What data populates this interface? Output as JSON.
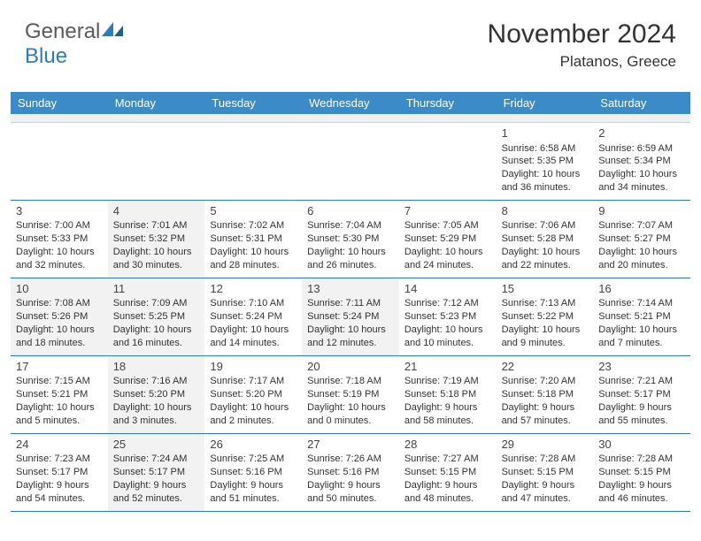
{
  "brand": {
    "part1": "General",
    "part2": "Blue"
  },
  "title": "November 2024",
  "location": "Platanos, Greece",
  "headerColor": "#3b8bc9",
  "borderColor": "#2b7bbf",
  "dayNames": [
    "Sunday",
    "Monday",
    "Tuesday",
    "Wednesday",
    "Thursday",
    "Friday",
    "Saturday"
  ],
  "weeks": [
    [
      {
        "blank": true
      },
      {
        "blank": true
      },
      {
        "blank": true
      },
      {
        "blank": true
      },
      {
        "blank": true
      },
      {
        "day": "1",
        "sunrise": "Sunrise: 6:58 AM",
        "sunset": "Sunset: 5:35 PM",
        "daylight": "Daylight: 10 hours and 36 minutes."
      },
      {
        "day": "2",
        "sunrise": "Sunrise: 6:59 AM",
        "sunset": "Sunset: 5:34 PM",
        "daylight": "Daylight: 10 hours and 34 minutes."
      }
    ],
    [
      {
        "day": "3",
        "sunrise": "Sunrise: 7:00 AM",
        "sunset": "Sunset: 5:33 PM",
        "daylight": "Daylight: 10 hours and 32 minutes."
      },
      {
        "day": "4",
        "sunrise": "Sunrise: 7:01 AM",
        "sunset": "Sunset: 5:32 PM",
        "daylight": "Daylight: 10 hours and 30 minutes.",
        "shaded": true
      },
      {
        "day": "5",
        "sunrise": "Sunrise: 7:02 AM",
        "sunset": "Sunset: 5:31 PM",
        "daylight": "Daylight: 10 hours and 28 minutes."
      },
      {
        "day": "6",
        "sunrise": "Sunrise: 7:04 AM",
        "sunset": "Sunset: 5:30 PM",
        "daylight": "Daylight: 10 hours and 26 minutes."
      },
      {
        "day": "7",
        "sunrise": "Sunrise: 7:05 AM",
        "sunset": "Sunset: 5:29 PM",
        "daylight": "Daylight: 10 hours and 24 minutes."
      },
      {
        "day": "8",
        "sunrise": "Sunrise: 7:06 AM",
        "sunset": "Sunset: 5:28 PM",
        "daylight": "Daylight: 10 hours and 22 minutes."
      },
      {
        "day": "9",
        "sunrise": "Sunrise: 7:07 AM",
        "sunset": "Sunset: 5:27 PM",
        "daylight": "Daylight: 10 hours and 20 minutes."
      }
    ],
    [
      {
        "day": "10",
        "sunrise": "Sunrise: 7:08 AM",
        "sunset": "Sunset: 5:26 PM",
        "daylight": "Daylight: 10 hours and 18 minutes.",
        "shaded": true
      },
      {
        "day": "11",
        "sunrise": "Sunrise: 7:09 AM",
        "sunset": "Sunset: 5:25 PM",
        "daylight": "Daylight: 10 hours and 16 minutes.",
        "shaded": true
      },
      {
        "day": "12",
        "sunrise": "Sunrise: 7:10 AM",
        "sunset": "Sunset: 5:24 PM",
        "daylight": "Daylight: 10 hours and 14 minutes."
      },
      {
        "day": "13",
        "sunrise": "Sunrise: 7:11 AM",
        "sunset": "Sunset: 5:24 PM",
        "daylight": "Daylight: 10 hours and 12 minutes.",
        "shaded": true
      },
      {
        "day": "14",
        "sunrise": "Sunrise: 7:12 AM",
        "sunset": "Sunset: 5:23 PM",
        "daylight": "Daylight: 10 hours and 10 minutes."
      },
      {
        "day": "15",
        "sunrise": "Sunrise: 7:13 AM",
        "sunset": "Sunset: 5:22 PM",
        "daylight": "Daylight: 10 hours and 9 minutes."
      },
      {
        "day": "16",
        "sunrise": "Sunrise: 7:14 AM",
        "sunset": "Sunset: 5:21 PM",
        "daylight": "Daylight: 10 hours and 7 minutes."
      }
    ],
    [
      {
        "day": "17",
        "sunrise": "Sunrise: 7:15 AM",
        "sunset": "Sunset: 5:21 PM",
        "daylight": "Daylight: 10 hours and 5 minutes."
      },
      {
        "day": "18",
        "sunrise": "Sunrise: 7:16 AM",
        "sunset": "Sunset: 5:20 PM",
        "daylight": "Daylight: 10 hours and 3 minutes.",
        "shaded": true
      },
      {
        "day": "19",
        "sunrise": "Sunrise: 7:17 AM",
        "sunset": "Sunset: 5:20 PM",
        "daylight": "Daylight: 10 hours and 2 minutes."
      },
      {
        "day": "20",
        "sunrise": "Sunrise: 7:18 AM",
        "sunset": "Sunset: 5:19 PM",
        "daylight": "Daylight: 10 hours and 0 minutes."
      },
      {
        "day": "21",
        "sunrise": "Sunrise: 7:19 AM",
        "sunset": "Sunset: 5:18 PM",
        "daylight": "Daylight: 9 hours and 58 minutes."
      },
      {
        "day": "22",
        "sunrise": "Sunrise: 7:20 AM",
        "sunset": "Sunset: 5:18 PM",
        "daylight": "Daylight: 9 hours and 57 minutes."
      },
      {
        "day": "23",
        "sunrise": "Sunrise: 7:21 AM",
        "sunset": "Sunset: 5:17 PM",
        "daylight": "Daylight: 9 hours and 55 minutes."
      }
    ],
    [
      {
        "day": "24",
        "sunrise": "Sunrise: 7:23 AM",
        "sunset": "Sunset: 5:17 PM",
        "daylight": "Daylight: 9 hours and 54 minutes."
      },
      {
        "day": "25",
        "sunrise": "Sunrise: 7:24 AM",
        "sunset": "Sunset: 5:17 PM",
        "daylight": "Daylight: 9 hours and 52 minutes.",
        "shaded": true
      },
      {
        "day": "26",
        "sunrise": "Sunrise: 7:25 AM",
        "sunset": "Sunset: 5:16 PM",
        "daylight": "Daylight: 9 hours and 51 minutes."
      },
      {
        "day": "27",
        "sunrise": "Sunrise: 7:26 AM",
        "sunset": "Sunset: 5:16 PM",
        "daylight": "Daylight: 9 hours and 50 minutes."
      },
      {
        "day": "28",
        "sunrise": "Sunrise: 7:27 AM",
        "sunset": "Sunset: 5:15 PM",
        "daylight": "Daylight: 9 hours and 48 minutes."
      },
      {
        "day": "29",
        "sunrise": "Sunrise: 7:28 AM",
        "sunset": "Sunset: 5:15 PM",
        "daylight": "Daylight: 9 hours and 47 minutes."
      },
      {
        "day": "30",
        "sunrise": "Sunrise: 7:28 AM",
        "sunset": "Sunset: 5:15 PM",
        "daylight": "Daylight: 9 hours and 46 minutes."
      }
    ]
  ]
}
